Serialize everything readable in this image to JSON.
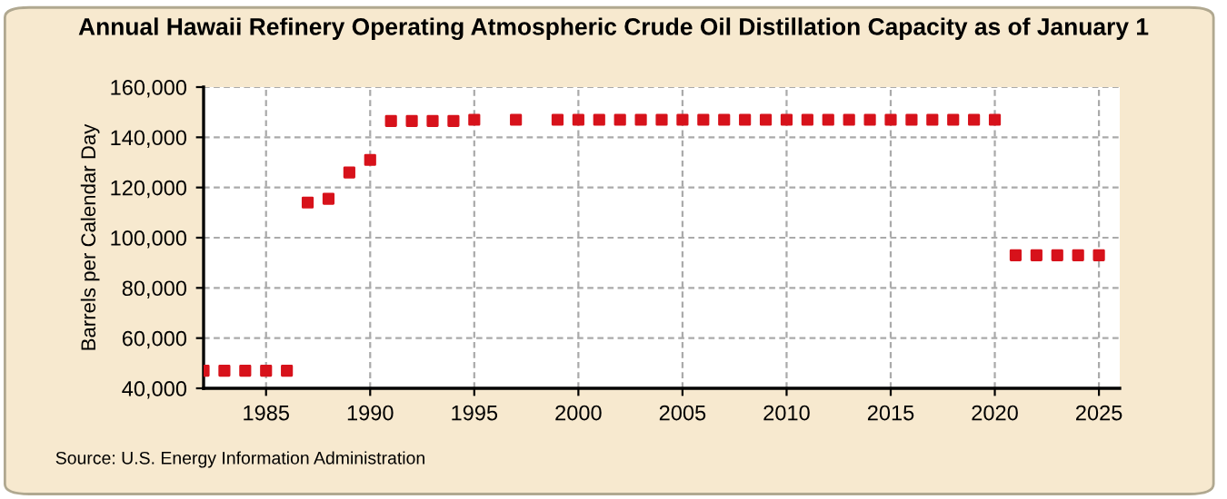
{
  "chart_data": {
    "type": "scatter",
    "title": "Annual Hawaii Refinery Operating Atmospheric Crude Oil Distillation Capacity as of January 1",
    "ylabel": "Barrels per Calendar Day",
    "x": [
      1982,
      1983,
      1984,
      1985,
      1986,
      1987,
      1988,
      1989,
      1990,
      1991,
      1992,
      1993,
      1994,
      1995,
      1997,
      1999,
      2000,
      2001,
      2002,
      2003,
      2004,
      2005,
      2006,
      2007,
      2008,
      2009,
      2010,
      2011,
      2012,
      2013,
      2014,
      2015,
      2016,
      2017,
      2018,
      2019,
      2020,
      2021,
      2022,
      2023,
      2024,
      2025
    ],
    "series": [
      {
        "color": "#d7121b",
        "values": [
          47000,
          47000,
          47000,
          47000,
          47000,
          114000,
          115500,
          126000,
          131000,
          146500,
          146500,
          146500,
          146500,
          147000,
          147000,
          147000,
          147000,
          147000,
          147000,
          147000,
          147000,
          147000,
          147000,
          147000,
          147000,
          147000,
          147000,
          147000,
          147000,
          147000,
          147000,
          147000,
          147000,
          147000,
          147000,
          147000,
          147000,
          93000,
          93000,
          93000,
          93000,
          93000
        ]
      }
    ],
    "xlim": [
      1982,
      2026
    ],
    "xticks": [
      1985,
      1990,
      1995,
      2000,
      2005,
      2010,
      2015,
      2020,
      2025
    ],
    "ylim": [
      40000,
      160000
    ],
    "yticks": [
      {
        "value": 40000,
        "label": "40,000"
      },
      {
        "value": 60000,
        "label": "60,000"
      },
      {
        "value": 80000,
        "label": "80,000"
      },
      {
        "value": 100000,
        "label": "100,000"
      },
      {
        "value": 120000,
        "label": "120,000"
      },
      {
        "value": 140000,
        "label": "140,000"
      },
      {
        "value": 160000,
        "label": "160,000"
      }
    ],
    "grid": true,
    "marker": "square",
    "legend": false,
    "annotations": [
      "Source: U.S. Energy Information Administration"
    ]
  }
}
